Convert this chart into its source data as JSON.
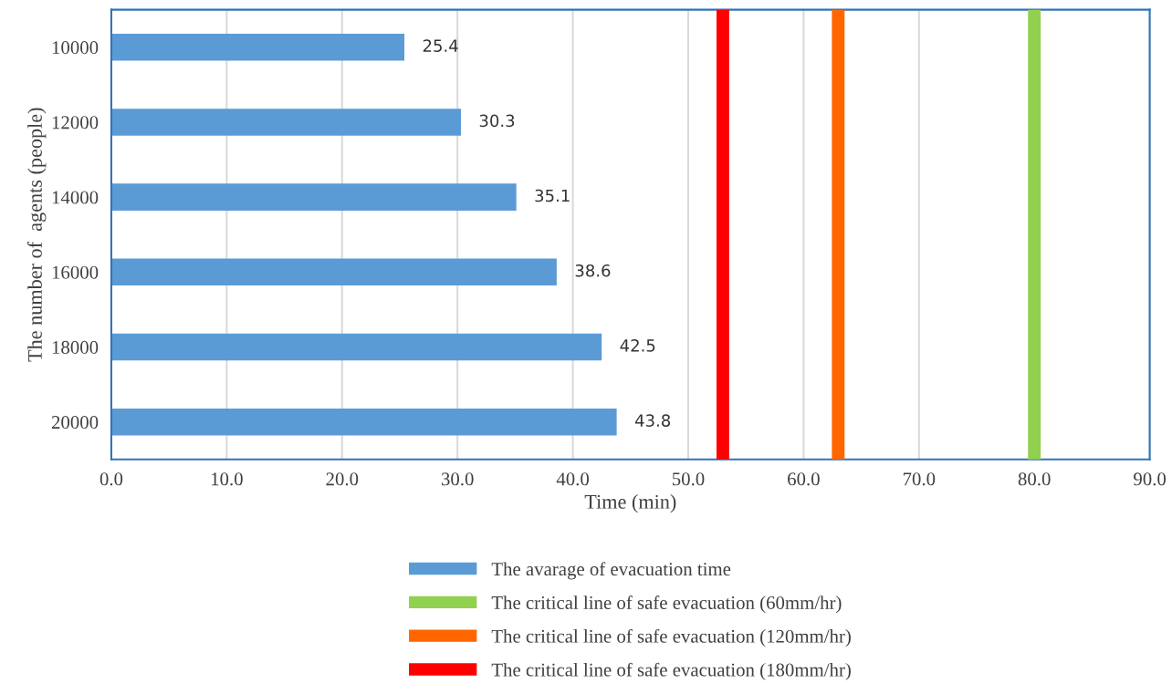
{
  "chart_data": {
    "type": "bar",
    "orientation": "horizontal",
    "xlabel": "Time (min)",
    "ylabel": "The number of  agents (people)",
    "categories": [
      "10000",
      "12000",
      "14000",
      "16000",
      "18000",
      "20000"
    ],
    "series": [
      {
        "name": "The avarage of evacuation time",
        "color": "#5b9bd5",
        "values": [
          25.4,
          30.3,
          35.1,
          38.6,
          42.5,
          43.8
        ]
      }
    ],
    "data_labels": true,
    "xlim": [
      0,
      90
    ],
    "xticks": [
      {
        "value": 0,
        "label": "0.0"
      },
      {
        "value": 10,
        "label": "10.0"
      },
      {
        "value": 20,
        "label": "20.0"
      },
      {
        "value": 30,
        "label": "30.0"
      },
      {
        "value": 40,
        "label": "40.0"
      },
      {
        "value": 50,
        "label": "50.0"
      },
      {
        "value": 60,
        "label": "60.0"
      },
      {
        "value": 70,
        "label": "70.0"
      },
      {
        "value": 80,
        "label": "80.0"
      },
      {
        "value": 90,
        "label": "90.0"
      }
    ],
    "ref_lines": [
      {
        "axis": "x",
        "value": 80,
        "label": "The critical line of safe evacuation (60mm/hr)",
        "color": "#92d050"
      },
      {
        "axis": "x",
        "value": 63,
        "label": "The critical line of safe evacuation (120mm/hr)",
        "color": "#ff6600"
      },
      {
        "axis": "x",
        "value": 53,
        "label": "The critical line of safe evacuation (180mm/hr)",
        "color": "#ff0000"
      }
    ],
    "grid": "x",
    "legend": "bottom"
  }
}
